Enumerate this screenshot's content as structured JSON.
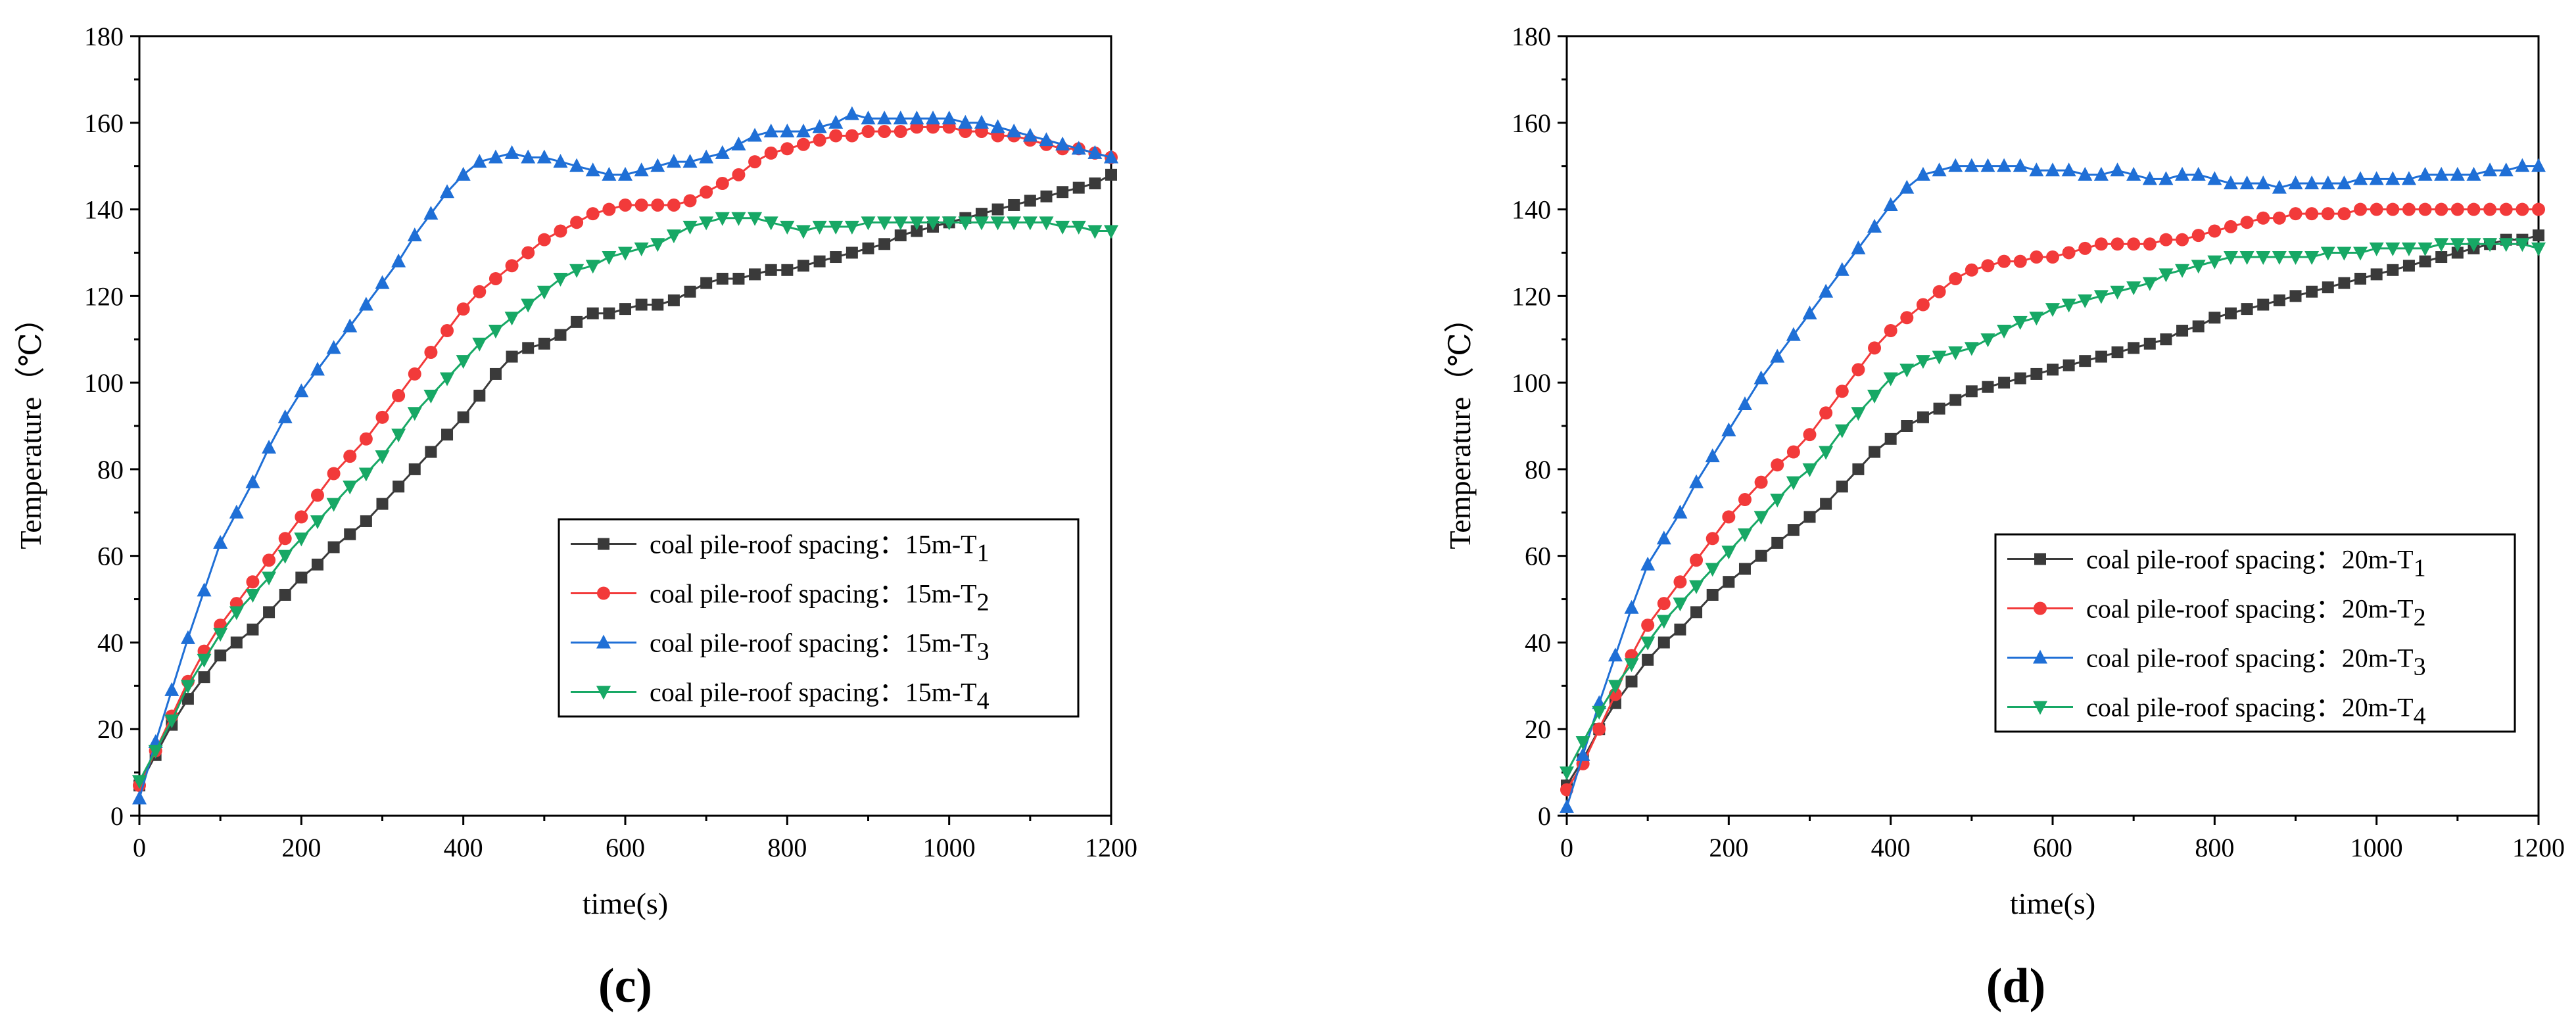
{
  "colors": {
    "T1": "#3a3a3a",
    "T2": "#f23a3a",
    "T3": "#1f6fd6",
    "T4": "#17a865"
  },
  "chart_data": [
    {
      "type": "line",
      "panel": "(c)",
      "xlabel": "time(s)",
      "ylabel": "Temperature（℃）",
      "xlim": [
        0,
        1200
      ],
      "ylim": [
        0,
        180
      ],
      "xticks": [
        "0",
        "200",
        "400",
        "600",
        "800",
        "1000",
        "1200"
      ],
      "yticks": [
        "0",
        "20",
        "40",
        "60",
        "80",
        "100",
        "120",
        "140",
        "160",
        "180"
      ],
      "legend": "bottom-right",
      "x": [
        0,
        20,
        40,
        60,
        80,
        100,
        120,
        140,
        160,
        180,
        200,
        220,
        240,
        260,
        280,
        300,
        320,
        340,
        360,
        380,
        400,
        420,
        440,
        460,
        480,
        500,
        520,
        540,
        560,
        580,
        600,
        620,
        640,
        660,
        680,
        700,
        720,
        740,
        760,
        780,
        800,
        820,
        840,
        860,
        880,
        900,
        920,
        940,
        960,
        980,
        1000,
        1020,
        1040,
        1060,
        1080,
        1100,
        1120,
        1140,
        1160,
        1180,
        1200
      ],
      "series": [
        {
          "key": "T1",
          "name": "coal pile-roof spacing：15m-T",
          "sub": "1",
          "marker": "square",
          "values": [
            7,
            14,
            21,
            27,
            32,
            37,
            40,
            43,
            47,
            51,
            55,
            58,
            62,
            65,
            68,
            72,
            76,
            80,
            84,
            88,
            92,
            97,
            102,
            106,
            108,
            109,
            111,
            114,
            116,
            116,
            117,
            118,
            118,
            119,
            121,
            123,
            124,
            124,
            125,
            126,
            126,
            127,
            128,
            129,
            130,
            131,
            132,
            134,
            135,
            136,
            137,
            138,
            139,
            140,
            141,
            142,
            143,
            144,
            145,
            146,
            148
          ]
        },
        {
          "key": "T2",
          "name": "coal pile-roof spacing：15m-T",
          "sub": "2",
          "marker": "circle",
          "values": [
            7,
            15,
            23,
            31,
            38,
            44,
            49,
            54,
            59,
            64,
            69,
            74,
            79,
            83,
            87,
            92,
            97,
            102,
            107,
            112,
            117,
            121,
            124,
            127,
            130,
            133,
            135,
            137,
            139,
            140,
            141,
            141,
            141,
            141,
            142,
            144,
            146,
            148,
            151,
            153,
            154,
            155,
            156,
            157,
            157,
            158,
            158,
            158,
            159,
            159,
            159,
            158,
            158,
            157,
            157,
            156,
            155,
            154,
            154,
            153,
            152
          ]
        },
        {
          "key": "T3",
          "name": "coal pile-roof spacing：15m-T",
          "sub": "3",
          "marker": "triangle-up",
          "values": [
            4,
            17,
            29,
            41,
            52,
            63,
            70,
            77,
            85,
            92,
            98,
            103,
            108,
            113,
            118,
            123,
            128,
            134,
            139,
            144,
            148,
            151,
            152,
            153,
            152,
            152,
            151,
            150,
            149,
            148,
            148,
            149,
            150,
            151,
            151,
            152,
            153,
            155,
            157,
            158,
            158,
            158,
            159,
            160,
            162,
            161,
            161,
            161,
            161,
            161,
            161,
            160,
            160,
            159,
            158,
            157,
            156,
            155,
            154,
            153,
            152
          ]
        },
        {
          "key": "T4",
          "name": "coal pile-roof spacing：15m-T",
          "sub": "4",
          "marker": "triangle-down",
          "values": [
            8,
            15,
            22,
            30,
            36,
            42,
            47,
            51,
            55,
            60,
            64,
            68,
            72,
            76,
            79,
            83,
            88,
            93,
            97,
            101,
            105,
            109,
            112,
            115,
            118,
            121,
            124,
            126,
            127,
            129,
            130,
            131,
            132,
            134,
            136,
            137,
            138,
            138,
            138,
            137,
            136,
            135,
            136,
            136,
            136,
            137,
            137,
            137,
            137,
            137,
            137,
            137,
            137,
            137,
            137,
            137,
            137,
            136,
            136,
            135,
            135
          ]
        }
      ]
    },
    {
      "type": "line",
      "panel": "(d)",
      "xlabel": "time(s)",
      "ylabel": "Temperature（℃）",
      "xlim": [
        0,
        1200
      ],
      "ylim": [
        0,
        180
      ],
      "xticks": [
        "0",
        "200",
        "400",
        "600",
        "800",
        "1000",
        "1200"
      ],
      "yticks": [
        "0",
        "20",
        "40",
        "60",
        "80",
        "100",
        "120",
        "140",
        "160",
        "180"
      ],
      "legend": "bottom-right",
      "x": [
        0,
        20,
        40,
        60,
        80,
        100,
        120,
        140,
        160,
        180,
        200,
        220,
        240,
        260,
        280,
        300,
        320,
        340,
        360,
        380,
        400,
        420,
        440,
        460,
        480,
        500,
        520,
        540,
        560,
        580,
        600,
        620,
        640,
        660,
        680,
        700,
        720,
        740,
        760,
        780,
        800,
        820,
        840,
        860,
        880,
        900,
        920,
        940,
        960,
        980,
        1000,
        1020,
        1040,
        1060,
        1080,
        1100,
        1120,
        1140,
        1160,
        1180,
        1200
      ],
      "series": [
        {
          "key": "T1",
          "name": "coal pile-roof spacing：20m-T",
          "sub": "1",
          "marker": "square",
          "values": [
            7,
            13,
            20,
            26,
            31,
            36,
            40,
            43,
            47,
            51,
            54,
            57,
            60,
            63,
            66,
            69,
            72,
            76,
            80,
            84,
            87,
            90,
            92,
            94,
            96,
            98,
            99,
            100,
            101,
            102,
            103,
            104,
            105,
            106,
            107,
            108,
            109,
            110,
            112,
            113,
            115,
            116,
            117,
            118,
            119,
            120,
            121,
            122,
            123,
            124,
            125,
            126,
            127,
            128,
            129,
            130,
            131,
            132,
            133,
            133,
            134
          ]
        },
        {
          "key": "T2",
          "name": "coal pile-roof spacing：20m-T",
          "sub": "2",
          "marker": "circle",
          "values": [
            6,
            12,
            20,
            28,
            37,
            44,
            49,
            54,
            59,
            64,
            69,
            73,
            77,
            81,
            84,
            88,
            93,
            98,
            103,
            108,
            112,
            115,
            118,
            121,
            124,
            126,
            127,
            128,
            128,
            129,
            129,
            130,
            131,
            132,
            132,
            132,
            132,
            133,
            133,
            134,
            135,
            136,
            137,
            138,
            138,
            139,
            139,
            139,
            139,
            140,
            140,
            140,
            140,
            140,
            140,
            140,
            140,
            140,
            140,
            140,
            140
          ]
        },
        {
          "key": "T3",
          "name": "coal pile-roof spacing：20m-T",
          "sub": "3",
          "marker": "triangle-up",
          "values": [
            2,
            14,
            26,
            37,
            48,
            58,
            64,
            70,
            77,
            83,
            89,
            95,
            101,
            106,
            111,
            116,
            121,
            126,
            131,
            136,
            141,
            145,
            148,
            149,
            150,
            150,
            150,
            150,
            150,
            149,
            149,
            149,
            148,
            148,
            149,
            148,
            147,
            147,
            148,
            148,
            147,
            146,
            146,
            146,
            145,
            146,
            146,
            146,
            146,
            147,
            147,
            147,
            147,
            148,
            148,
            148,
            148,
            149,
            149,
            150,
            150
          ]
        },
        {
          "key": "T4",
          "name": "coal pile-roof spacing：20m-T",
          "sub": "4",
          "marker": "triangle-down",
          "values": [
            10,
            17,
            24,
            30,
            35,
            40,
            45,
            49,
            53,
            57,
            61,
            65,
            69,
            73,
            77,
            80,
            84,
            89,
            93,
            97,
            101,
            103,
            105,
            106,
            107,
            108,
            110,
            112,
            114,
            115,
            117,
            118,
            119,
            120,
            121,
            122,
            123,
            125,
            126,
            127,
            128,
            129,
            129,
            129,
            129,
            129,
            129,
            130,
            130,
            130,
            131,
            131,
            131,
            131,
            132,
            132,
            132,
            132,
            132,
            132,
            131
          ]
        }
      ]
    }
  ]
}
